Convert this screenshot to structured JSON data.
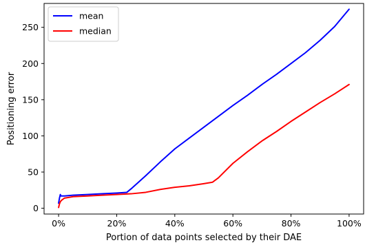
{
  "chart_data": {
    "type": "line",
    "title": "",
    "xlabel": "Portion of data points selected by their DAE",
    "ylabel": "Positioning error",
    "xlim": [
      -0.05,
      1.05
    ],
    "ylim": [
      -8,
      283
    ],
    "xticks": [
      0,
      0.2,
      0.4,
      0.6,
      0.8,
      1.0
    ],
    "xtick_labels": [
      "0%",
      "20%",
      "40%",
      "60%",
      "80%",
      "100%"
    ],
    "yticks": [
      0,
      50,
      100,
      150,
      200,
      250
    ],
    "ytick_labels": [
      "0",
      "50",
      "100",
      "150",
      "200",
      "250"
    ],
    "grid": false,
    "legend_position": "top-left",
    "series": [
      {
        "name": "mean",
        "color": "#0000ff",
        "x": [
          0,
          0.003,
          0.006,
          0.008,
          0.01,
          0.02,
          0.05,
          0.1,
          0.15,
          0.2,
          0.235,
          0.25,
          0.3,
          0.35,
          0.4,
          0.45,
          0.5,
          0.55,
          0.6,
          0.65,
          0.7,
          0.75,
          0.8,
          0.85,
          0.9,
          0.95,
          1.0
        ],
        "values": [
          7,
          14,
          19,
          17,
          17,
          17,
          18,
          19,
          20,
          21,
          22,
          27,
          45,
          64,
          82,
          97,
          112,
          127,
          142,
          156,
          171,
          185,
          200,
          215,
          232,
          251,
          275
        ]
      },
      {
        "name": "median",
        "color": "#ff0000",
        "x": [
          0,
          0.003,
          0.006,
          0.01,
          0.02,
          0.05,
          0.1,
          0.15,
          0.2,
          0.25,
          0.3,
          0.35,
          0.4,
          0.45,
          0.5,
          0.53,
          0.55,
          0.6,
          0.65,
          0.7,
          0.75,
          0.8,
          0.85,
          0.9,
          0.95,
          1.0
        ],
        "values": [
          1,
          6,
          9,
          11,
          14,
          16,
          17,
          18,
          19,
          20,
          22,
          26,
          29,
          31,
          34,
          36,
          42,
          62,
          78,
          93,
          106,
          120,
          133,
          146,
          158,
          171
        ]
      }
    ]
  }
}
